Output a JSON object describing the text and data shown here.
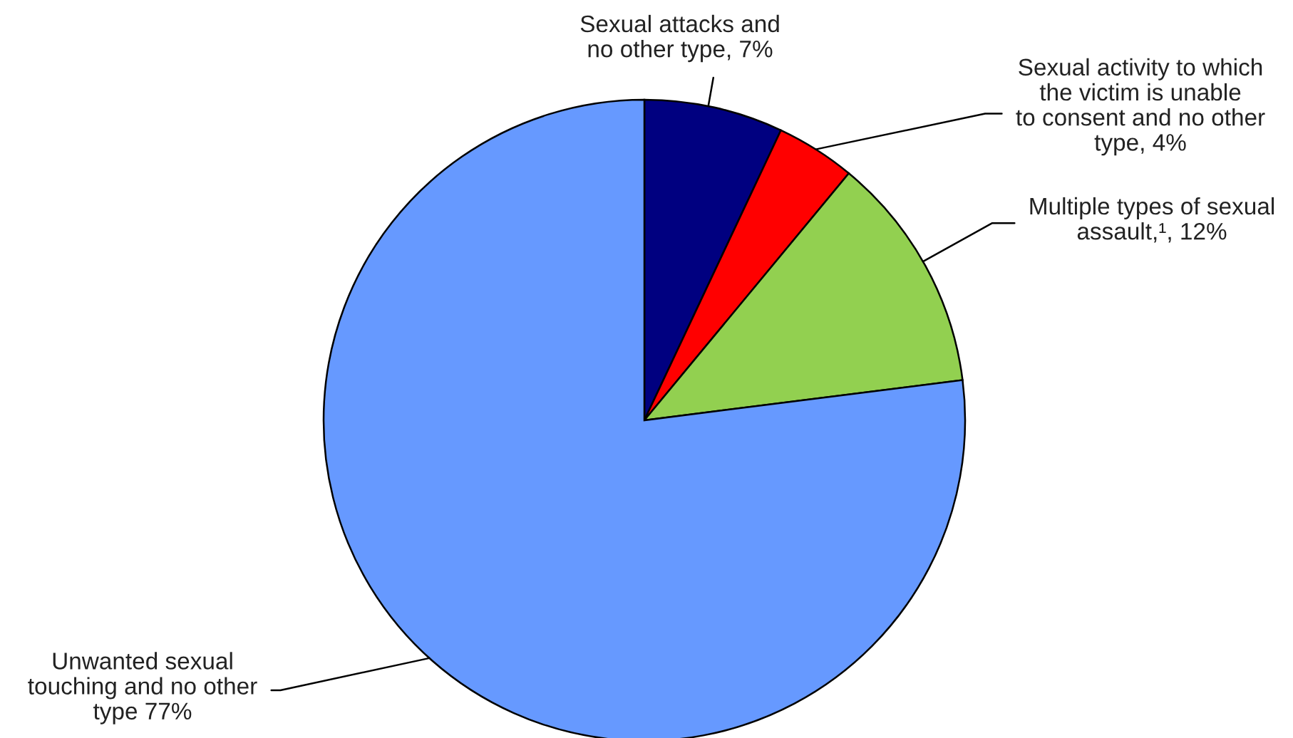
{
  "chart_data": {
    "type": "pie",
    "categories": [
      "Sexual attacks and\nno other type, 7%",
      "Sexual activity to which\nthe victim is unable\nto consent and no other\ntype, 4%",
      "Multiple types of sexual\nassault,¹, 12%",
      "Unwanted sexual\ntouching and no other\ntype 77%"
    ],
    "values": [
      7,
      4,
      12,
      77
    ],
    "colors": [
      "#000080",
      "#ff0000",
      "#92d050",
      "#6699ff"
    ]
  }
}
